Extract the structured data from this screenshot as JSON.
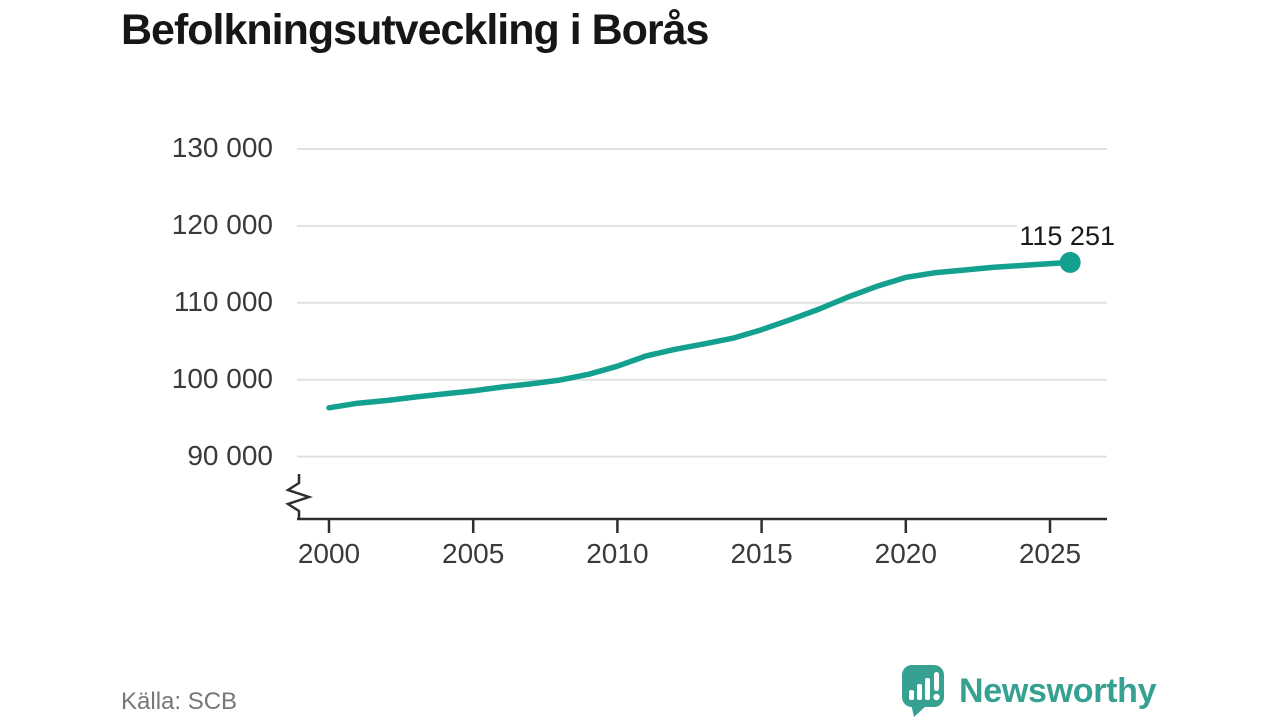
{
  "title": "Befolkningsutveckling i Borås",
  "source": "Källa: SCB",
  "brand": {
    "name": "Newsworthy",
    "icon": "bar-chart-speech-bubble-icon"
  },
  "colors": {
    "line": "#14a08e",
    "dot": "#14a08e",
    "grid": "#e1e1e1",
    "axis": "#2e2e2e",
    "tick_label": "#3a3a3a",
    "title": "#161616",
    "annotation": "#191919",
    "source": "#76777a",
    "brand": "#36a191",
    "background": "#ffffff"
  },
  "chart_data": {
    "type": "line",
    "title": "Befolkningsutveckling i Borås",
    "xlabel": "",
    "ylabel": "",
    "x": [
      2000,
      2001,
      2002,
      2003,
      2004,
      2005,
      2006,
      2007,
      2008,
      2009,
      2010,
      2011,
      2012,
      2013,
      2014,
      2015,
      2016,
      2017,
      2018,
      2019,
      2020,
      2021,
      2022,
      2023,
      2024,
      2025,
      2025.7
    ],
    "values": [
      96350,
      96950,
      97300,
      97750,
      98150,
      98550,
      99050,
      99450,
      99950,
      100700,
      101750,
      103100,
      103950,
      104650,
      105400,
      106500,
      107800,
      109200,
      110750,
      112150,
      113300,
      113900,
      114250,
      114600,
      114850,
      115100,
      115251
    ],
    "end_value": 115251,
    "end_label": "115 251",
    "xticks": [
      2000,
      2005,
      2010,
      2015,
      2020,
      2025
    ],
    "xtick_labels": [
      "2000",
      "2005",
      "2010",
      "2015",
      "2020",
      "2025"
    ],
    "yticks": [
      90000,
      100000,
      110000,
      120000,
      130000
    ],
    "ytick_labels": [
      "90 000",
      "100 000",
      "110 000",
      "120 000",
      "130 000"
    ],
    "ylim_displayed": [
      90000,
      130000
    ],
    "xlim": [
      1998.9,
      2027
    ],
    "grid": "horizontal",
    "axis_break": true,
    "legend": "none"
  }
}
